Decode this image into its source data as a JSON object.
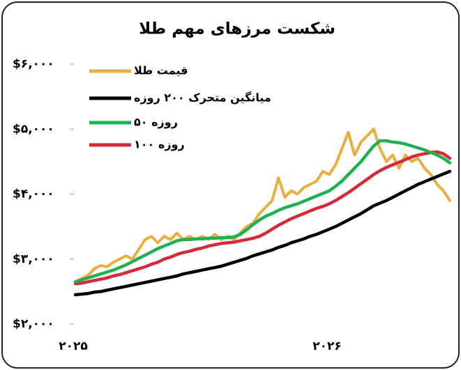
{
  "chart_data": {
    "type": "line",
    "title": "شکست مرزهای مهم طلا",
    "categories": [
      "۲۰۲۵",
      null,
      null,
      null,
      null,
      null,
      null,
      null,
      null,
      null,
      null,
      null,
      null,
      null,
      null,
      null,
      null,
      null,
      null,
      null,
      null,
      null,
      null,
      null,
      null,
      null,
      null,
      null,
      null,
      null,
      null,
      null,
      null,
      null,
      null,
      null,
      null,
      null,
      null,
      null,
      "۲۰۲۶",
      null,
      null,
      null,
      null,
      null,
      null,
      null,
      null,
      null,
      null,
      null,
      null,
      null,
      null,
      null,
      null,
      null,
      null,
      null
    ],
    "series": [
      {
        "name": "قیمت طلا",
        "color": "#e9ae3e",
        "values": [
          2650,
          2700,
          2750,
          2850,
          2900,
          2880,
          2950,
          3000,
          3050,
          3000,
          3150,
          3300,
          3350,
          3250,
          3350,
          3300,
          3400,
          3300,
          3350,
          3300,
          3350,
          3300,
          3380,
          3300,
          3350,
          3300,
          3400,
          3500,
          3550,
          3700,
          3800,
          3900,
          4250,
          3950,
          4050,
          4000,
          4100,
          4150,
          4200,
          4350,
          4300,
          4450,
          4700,
          4950,
          4600,
          4800,
          4900,
          5000,
          4700,
          4500,
          4600,
          4400,
          4600,
          4500,
          4550,
          4400,
          4300,
          4150,
          4050,
          3900
        ]
      },
      {
        "name": "میانگین متحرک ۲۰۰ روزه",
        "color": "#000000",
        "values": [
          2450,
          2460,
          2470,
          2490,
          2500,
          2520,
          2540,
          2560,
          2580,
          2600,
          2620,
          2640,
          2660,
          2680,
          2700,
          2720,
          2740,
          2770,
          2790,
          2810,
          2830,
          2850,
          2870,
          2890,
          2920,
          2950,
          2980,
          3010,
          3050,
          3080,
          3110,
          3140,
          3180,
          3210,
          3250,
          3280,
          3310,
          3350,
          3380,
          3420,
          3460,
          3500,
          3550,
          3600,
          3650,
          3700,
          3760,
          3820,
          3860,
          3900,
          3950,
          4000,
          4050,
          4100,
          4150,
          4190,
          4230,
          4270,
          4310,
          4350
        ]
      },
      {
        "name": "۵۰ روزه",
        "color": "#1fb04f",
        "values": [
          2650,
          2680,
          2710,
          2740,
          2770,
          2800,
          2830,
          2870,
          2910,
          2960,
          3010,
          3060,
          3110,
          3160,
          3200,
          3240,
          3280,
          3300,
          3300,
          3310,
          3310,
          3320,
          3320,
          3330,
          3330,
          3340,
          3380,
          3450,
          3530,
          3600,
          3660,
          3700,
          3750,
          3790,
          3820,
          3850,
          3890,
          3930,
          3970,
          4010,
          4050,
          4120,
          4200,
          4300,
          4400,
          4500,
          4620,
          4740,
          4820,
          4820,
          4800,
          4790,
          4770,
          4740,
          4710,
          4680,
          4640,
          4600,
          4550,
          4480
        ]
      },
      {
        "name": "۱۰۰ روزه",
        "color": "#d42a3a",
        "values": [
          2620,
          2630,
          2650,
          2670,
          2690,
          2710,
          2740,
          2760,
          2790,
          2820,
          2850,
          2880,
          2920,
          2950,
          3000,
          3030,
          3070,
          3100,
          3120,
          3150,
          3170,
          3200,
          3220,
          3240,
          3250,
          3260,
          3280,
          3300,
          3320,
          3350,
          3400,
          3460,
          3520,
          3570,
          3620,
          3660,
          3700,
          3740,
          3780,
          3810,
          3850,
          3900,
          3960,
          4020,
          4090,
          4160,
          4230,
          4300,
          4360,
          4410,
          4450,
          4490,
          4530,
          4570,
          4600,
          4620,
          4640,
          4650,
          4620,
          4550
        ]
      }
    ],
    "ylim": [
      2000,
      6000
    ],
    "yticks": [
      {
        "value": 2000,
        "label": "$۲,۰۰۰"
      },
      {
        "value": 3000,
        "label": "$۳,۰۰۰"
      },
      {
        "value": 4000,
        "label": "$۴,۰۰۰"
      },
      {
        "value": 5000,
        "label": "$۵,۰۰۰"
      },
      {
        "value": 6000,
        "label": "$۶,۰۰۰"
      }
    ],
    "grid": false,
    "legend": "top-left"
  }
}
